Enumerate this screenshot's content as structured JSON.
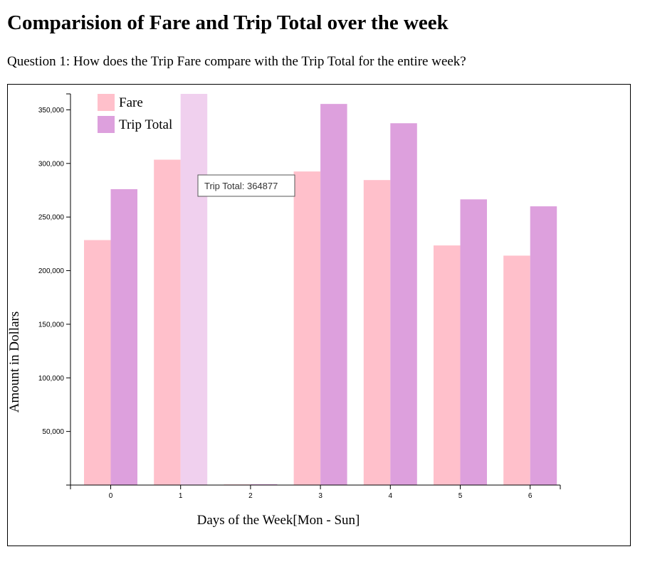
{
  "page": {
    "title": "Comparision of Fare and Trip Total over the week",
    "question": "Question 1: How does the Trip Fare compare with the Trip Total for the entire week?"
  },
  "tooltip": {
    "text": "Trip Total: 364877",
    "series_index": 1,
    "category_index": 1
  },
  "chart_data": {
    "type": "bar",
    "xlabel": "Days of the Week[Mon - Sun]",
    "ylabel": "Amount in Dollars",
    "categories": [
      "0",
      "1",
      "2",
      "3",
      "4",
      "5",
      "6"
    ],
    "series": [
      {
        "name": "Fare",
        "color": "#ffc0cb",
        "values": [
          228500,
          303500,
          600,
          292500,
          284500,
          223500,
          214000
        ]
      },
      {
        "name": "Trip Total",
        "color": "#dda0dd",
        "values": [
          276000,
          364877,
          800,
          355500,
          337500,
          266500,
          260000
        ]
      }
    ],
    "highlight_color": "#f0d0ee",
    "ylim": [
      0,
      364877
    ],
    "yticks": [
      50000,
      100000,
      150000,
      200000,
      250000,
      300000,
      350000
    ],
    "ytick_labels": [
      "50,000",
      "100,000",
      "150,000",
      "200,000",
      "250,000",
      "300,000",
      "350,000"
    ],
    "grid": false,
    "legend": "top-left"
  }
}
